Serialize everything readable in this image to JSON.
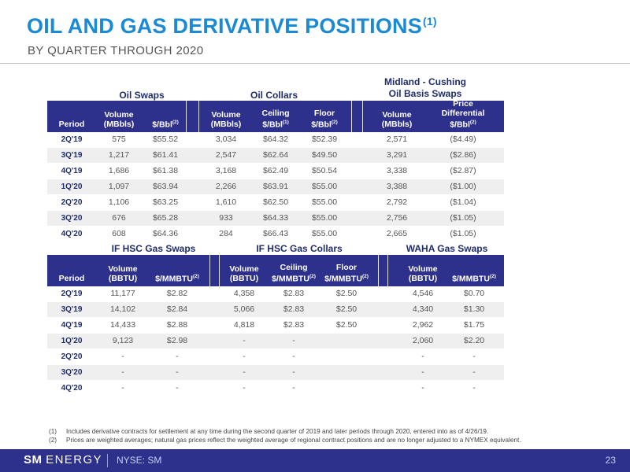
{
  "header": {
    "title": "OIL AND GAS DERIVATIVE POSITIONS",
    "title_note": "(1)",
    "subtitle": "BY QUARTER THROUGH 2020"
  },
  "top_section": {
    "group_labels": {
      "oil_swaps": "Oil Swaps",
      "oil_collars": "Oil Collars",
      "basis_line1": "Midland - Cushing",
      "basis_line2": "Oil Basis Swaps"
    },
    "columns": {
      "period": "Period",
      "swap_vol": [
        "Volume",
        "(MBbls)"
      ],
      "swap_price": "$/Bbl",
      "swap_price_note": "(2)",
      "col_vol": [
        "Volume",
        "(MBbls)"
      ],
      "ceiling": "Ceiling",
      "ceiling_unit": "$/Bbl",
      "ceiling_note": "(1)",
      "floor": "Floor",
      "floor_unit": "$/Bbl",
      "floor_note": "(2)",
      "basis_vol": [
        "Volume",
        "(MBbls)"
      ],
      "diff": [
        "Price",
        "Differential"
      ],
      "diff_unit": "$/Bbl",
      "diff_note": "(2)"
    },
    "rows": [
      {
        "period": "2Q'19",
        "swap_vol": "575",
        "swap_price": "$55.52",
        "col_vol": "3,034",
        "ceiling": "$64.32",
        "floor": "$52.39",
        "basis_vol": "2,571",
        "diff": "($4.49)"
      },
      {
        "period": "3Q'19",
        "swap_vol": "1,217",
        "swap_price": "$61.41",
        "col_vol": "2,547",
        "ceiling": "$62.64",
        "floor": "$49.50",
        "basis_vol": "3,291",
        "diff": "($2.86)"
      },
      {
        "period": "4Q'19",
        "swap_vol": "1,686",
        "swap_price": "$61.38",
        "col_vol": "3,168",
        "ceiling": "$62.49",
        "floor": "$50.54",
        "basis_vol": "3,338",
        "diff": "($2.87)"
      },
      {
        "period": "1Q'20",
        "swap_vol": "1,097",
        "swap_price": "$63.94",
        "col_vol": "2,266",
        "ceiling": "$63.91",
        "floor": "$55.00",
        "basis_vol": "3,388",
        "diff": "($1.00)"
      },
      {
        "period": "2Q'20",
        "swap_vol": "1,106",
        "swap_price": "$63.25",
        "col_vol": "1,610",
        "ceiling": "$62.50",
        "floor": "$55.00",
        "basis_vol": "2,792",
        "diff": "($1.04)"
      },
      {
        "period": "3Q'20",
        "swap_vol": "676",
        "swap_price": "$65.28",
        "col_vol": "933",
        "ceiling": "$64.33",
        "floor": "$55.00",
        "basis_vol": "2,756",
        "diff": "($1.05)"
      },
      {
        "period": "4Q'20",
        "swap_vol": "608",
        "swap_price": "$64.36",
        "col_vol": "284",
        "ceiling": "$66.43",
        "floor": "$55.00",
        "basis_vol": "2,665",
        "diff": "($1.05)"
      }
    ]
  },
  "bottom_section": {
    "group_labels": {
      "if_swaps": "IF HSC Gas Swaps",
      "if_collars": "IF HSC Gas Collars",
      "waha": "WAHA Gas Swaps"
    },
    "columns": {
      "period": "Period",
      "swap_vol": [
        "Volume",
        "(BBTU)"
      ],
      "swap_price": "$/MMBTU",
      "swap_price_note": "(2)",
      "col_vol": [
        "Volume",
        "(BBTU)"
      ],
      "ceiling": "Ceiling",
      "ceiling_unit": "$/MMBTU",
      "ceiling_note": "(2)",
      "floor": "Floor",
      "floor_unit": "$/MMBTU",
      "floor_note": "(2)",
      "waha_vol": [
        "Volume",
        "(BBTU)"
      ],
      "waha_price": "$/MMBTU",
      "waha_price_note": "(2)"
    },
    "rows": [
      {
        "period": "2Q'19",
        "swap_vol": "11,177",
        "swap_price": "$2.82",
        "col_vol": "4,358",
        "ceiling": "$2.83",
        "floor": "$2.50",
        "waha_vol": "4,546",
        "waha_price": "$0.70"
      },
      {
        "period": "3Q'19",
        "swap_vol": "14,102",
        "swap_price": "$2.84",
        "col_vol": "5,066",
        "ceiling": "$2.83",
        "floor": "$2.50",
        "waha_vol": "4,340",
        "waha_price": "$1.30"
      },
      {
        "period": "4Q'19",
        "swap_vol": "14,433",
        "swap_price": "$2.88",
        "col_vol": "4,818",
        "ceiling": "$2.83",
        "floor": "$2.50",
        "waha_vol": "2,962",
        "waha_price": "$1.75"
      },
      {
        "period": "1Q'20",
        "swap_vol": "9,123",
        "swap_price": "$2.98",
        "col_vol": "-",
        "ceiling": "-",
        "floor": "",
        "waha_vol": "2,060",
        "waha_price": "$2.20"
      },
      {
        "period": "2Q'20",
        "swap_vol": "-",
        "swap_price": "-",
        "col_vol": "-",
        "ceiling": "-",
        "floor": "",
        "waha_vol": "-",
        "waha_price": "-"
      },
      {
        "period": "3Q'20",
        "swap_vol": "-",
        "swap_price": "-",
        "col_vol": "-",
        "ceiling": "-",
        "floor": "",
        "waha_vol": "-",
        "waha_price": "-"
      },
      {
        "period": "4Q'20",
        "swap_vol": "-",
        "swap_price": "-",
        "col_vol": "-",
        "ceiling": "-",
        "floor": "",
        "waha_vol": "-",
        "waha_price": "-"
      }
    ]
  },
  "footnotes": [
    {
      "num": "(1)",
      "text": "Includes derivative contracts for settlement at any time during the second quarter of 2019 and later periods through 2020, entered into as of 4/26/19."
    },
    {
      "num": "(2)",
      "text": "Prices are weighted averages; natural gas prices reflect the weighted average of regional contract positions and are no longer adjusted to a NYMEX equivalent."
    }
  ],
  "footer": {
    "logo_sm": "SM",
    "logo_energy": "ENERGY",
    "ticker": "NYSE: SM",
    "page_number": "23"
  },
  "colors": {
    "title_blue": "#1a8ad4",
    "header_navy": "#2e318b",
    "group_label": "#1f2d6b",
    "row_shade": "#efefef"
  }
}
